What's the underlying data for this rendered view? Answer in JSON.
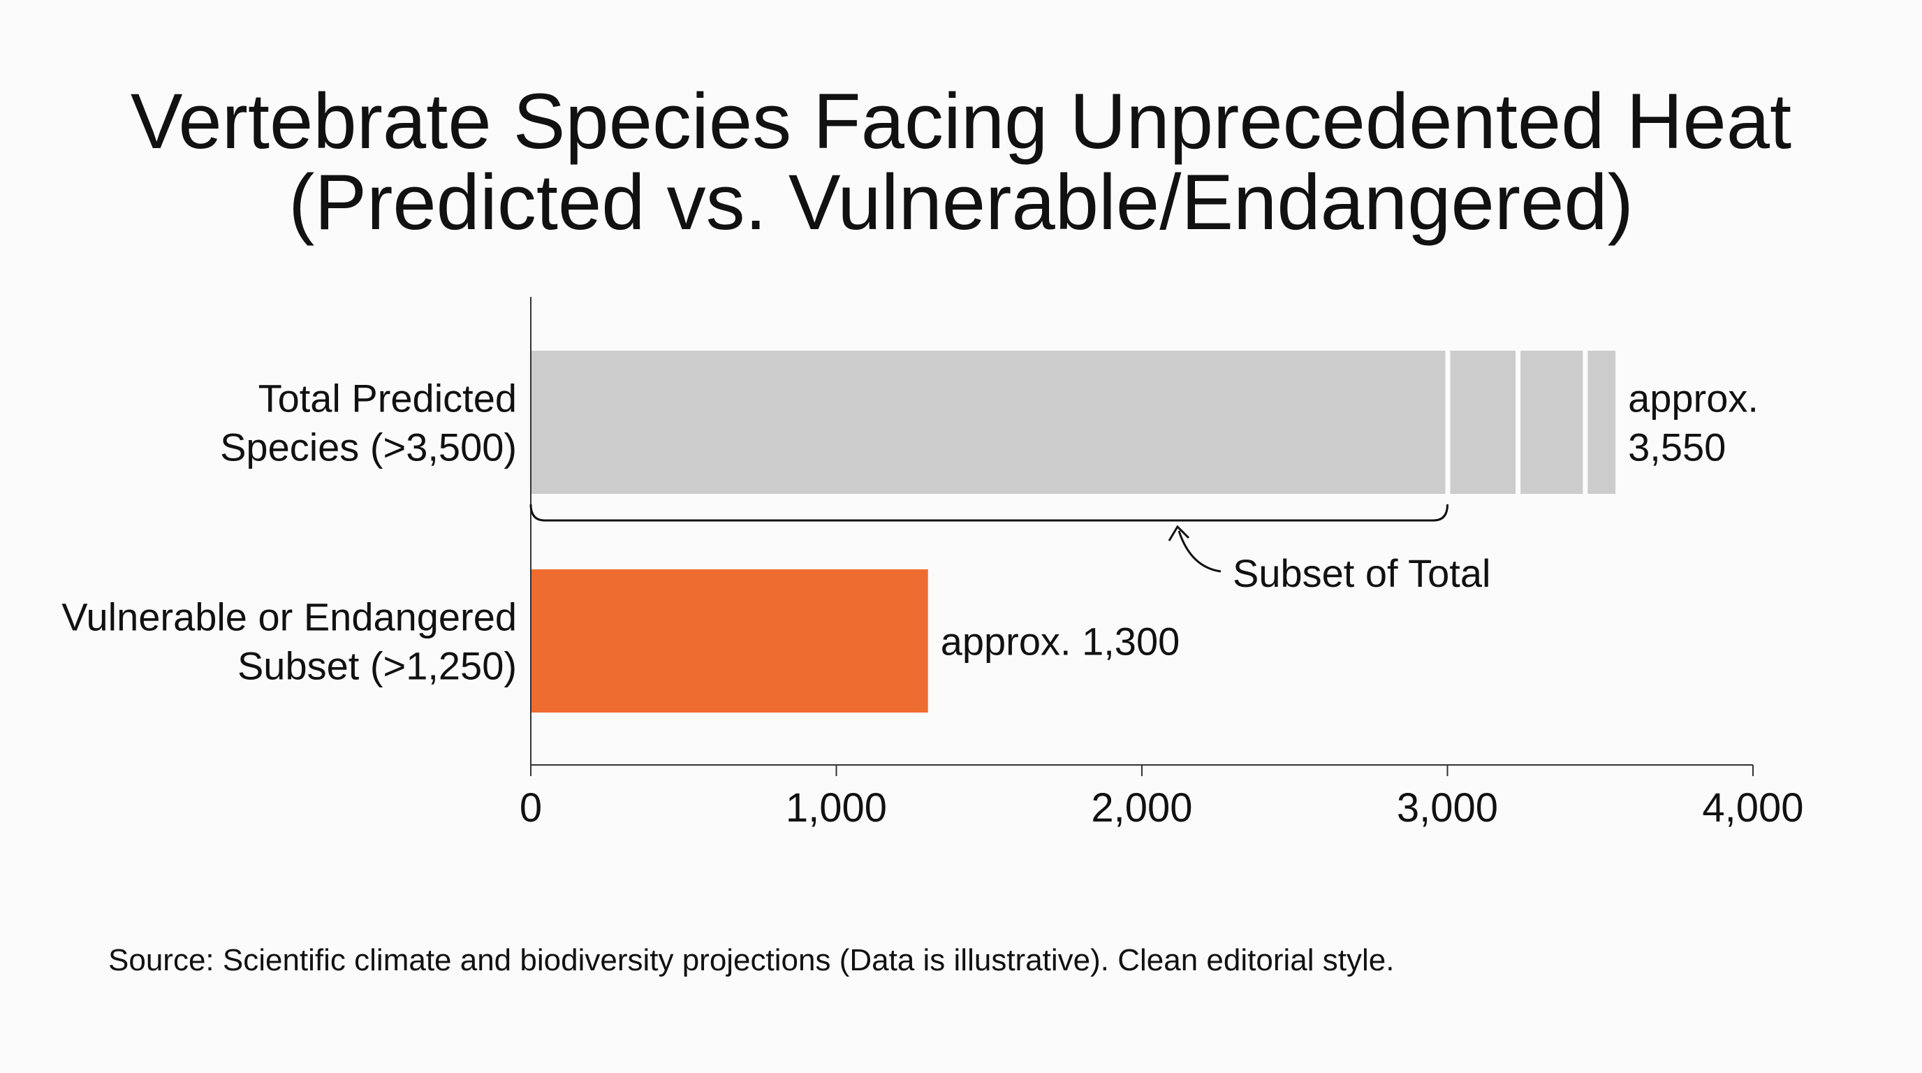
{
  "chart_data": {
    "type": "bar",
    "orientation": "horizontal",
    "title_lines": [
      "Vertebrate Species Facing Unprecedented Heat",
      "(Predicted vs. Vulnerable/Endangered)"
    ],
    "categories": [
      [
        "Total Predicted",
        "Species (>3,500)"
      ],
      [
        "Vulnerable or Endangered",
        "Subset (>1,250)"
      ]
    ],
    "values": [
      3550,
      1300
    ],
    "data_labels": [
      [
        "approx.",
        "3,550"
      ],
      [
        "approx. 1,300"
      ]
    ],
    "colors": [
      "#cccccc",
      "#ef6c30"
    ],
    "segment_breaks": [
      3000,
      3230,
      3450
    ],
    "xlim": [
      0,
      4000
    ],
    "xticks": [
      0,
      1000,
      2000,
      3000,
      4000
    ],
    "xtick_labels": [
      "0",
      "1,000",
      "2,000",
      "3,000",
      "4,000"
    ],
    "annotation": {
      "text": "Subset of Total",
      "bracket_range": [
        0,
        3000
      ]
    },
    "grid": false,
    "legend": "none"
  },
  "source": "Source: Scientific climate and biodiversity projections (Data is illustrative). Clean editorial style.",
  "colors": {
    "background": "#fbfbfb",
    "text": "#111111",
    "axis": "#333333"
  }
}
